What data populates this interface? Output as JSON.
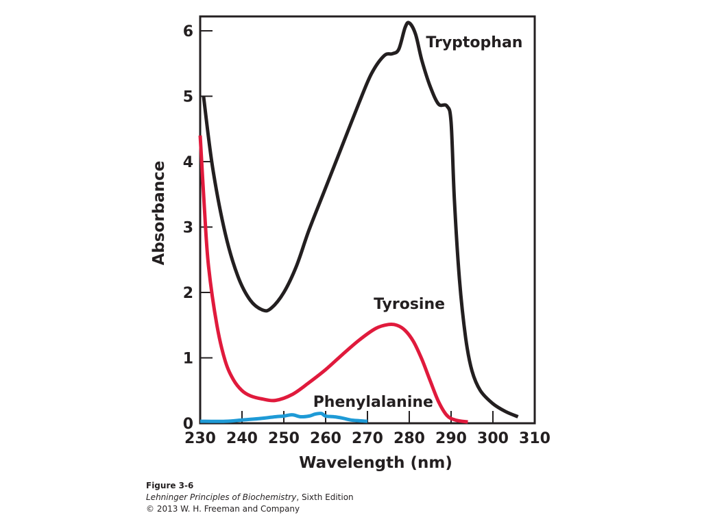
{
  "chart_data": {
    "type": "line",
    "xlabel": "Wavelength (nm)",
    "ylabel": "Absorbance",
    "xlim": [
      230,
      310
    ],
    "ylim": [
      0,
      6.2
    ],
    "x_ticks": [
      230,
      240,
      250,
      260,
      270,
      280,
      290,
      300,
      310
    ],
    "y_ticks": [
      0,
      1,
      2,
      3,
      4,
      5,
      6
    ],
    "grid": false,
    "series": [
      {
        "name": "Tryptophan",
        "color": "#231f20",
        "points": [
          [
            230.8,
            5.0
          ],
          [
            233,
            3.9
          ],
          [
            236,
            2.9
          ],
          [
            239,
            2.25
          ],
          [
            242,
            1.88
          ],
          [
            245,
            1.73
          ],
          [
            247,
            1.76
          ],
          [
            250,
            2.0
          ],
          [
            253,
            2.4
          ],
          [
            256,
            2.95
          ],
          [
            260,
            3.6
          ],
          [
            264,
            4.25
          ],
          [
            268,
            4.9
          ],
          [
            271,
            5.35
          ],
          [
            274,
            5.62
          ],
          [
            276,
            5.65
          ],
          [
            277.5,
            5.72
          ],
          [
            279,
            6.05
          ],
          [
            280,
            6.12
          ],
          [
            281.5,
            5.95
          ],
          [
            283,
            5.55
          ],
          [
            285,
            5.15
          ],
          [
            287,
            4.88
          ],
          [
            289,
            4.85
          ],
          [
            290,
            4.6
          ],
          [
            290.8,
            3.4
          ],
          [
            292,
            2.2
          ],
          [
            293.5,
            1.3
          ],
          [
            295,
            0.8
          ],
          [
            297,
            0.5
          ],
          [
            300,
            0.3
          ],
          [
            303,
            0.18
          ],
          [
            306,
            0.1
          ]
        ]
      },
      {
        "name": "Tyrosine",
        "color": "#e01a3c",
        "points": [
          [
            230,
            4.4
          ],
          [
            231,
            3.3
          ],
          [
            232,
            2.4
          ],
          [
            234,
            1.5
          ],
          [
            236,
            0.95
          ],
          [
            238,
            0.66
          ],
          [
            240,
            0.5
          ],
          [
            242,
            0.42
          ],
          [
            245,
            0.37
          ],
          [
            248,
            0.35
          ],
          [
            252,
            0.44
          ],
          [
            256,
            0.62
          ],
          [
            260,
            0.82
          ],
          [
            264,
            1.05
          ],
          [
            268,
            1.27
          ],
          [
            272,
            1.45
          ],
          [
            275,
            1.51
          ],
          [
            277,
            1.5
          ],
          [
            279,
            1.42
          ],
          [
            281,
            1.25
          ],
          [
            283,
            0.98
          ],
          [
            285,
            0.65
          ],
          [
            287,
            0.33
          ],
          [
            289,
            0.12
          ],
          [
            291,
            0.05
          ],
          [
            294,
            0.02
          ]
        ]
      },
      {
        "name": "Phenylalanine",
        "color": "#1e9ad6",
        "points": [
          [
            230,
            0.03
          ],
          [
            236,
            0.03
          ],
          [
            240,
            0.05
          ],
          [
            244,
            0.07
          ],
          [
            248,
            0.1
          ],
          [
            250,
            0.11
          ],
          [
            252,
            0.13
          ],
          [
            254,
            0.1
          ],
          [
            256,
            0.11
          ],
          [
            257.5,
            0.14
          ],
          [
            259,
            0.15
          ],
          [
            260,
            0.11
          ],
          [
            262,
            0.1
          ],
          [
            264,
            0.08
          ],
          [
            266,
            0.05
          ],
          [
            268,
            0.04
          ],
          [
            270,
            0.03
          ]
        ]
      }
    ],
    "annotations": [
      "Tryptophan",
      "Tyrosine",
      "Phenylalanine"
    ]
  },
  "caption": {
    "figure": "Figure 3-6",
    "book_title": "Lehninger Principles of Biochemistry",
    "book_edition": ", Sixth Edition",
    "copyright": "© 2013 W. H. Freeman and Company"
  }
}
